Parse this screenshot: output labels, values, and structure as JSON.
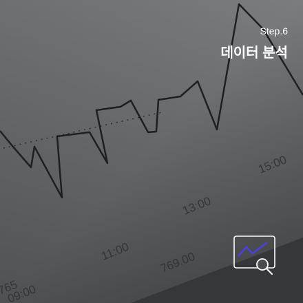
{
  "step": "Step.6",
  "title": "데이터 분석",
  "background_labels": [
    "11:00",
    "13:00",
    "15:00",
    "769.00",
    "765",
    "09:00"
  ]
}
